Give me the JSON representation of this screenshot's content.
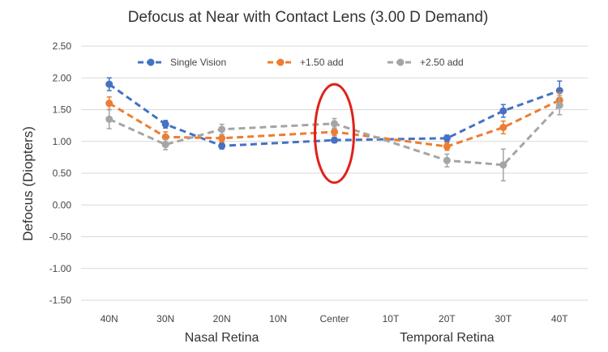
{
  "chart_data": {
    "type": "line",
    "title": "Defocus at Near with Contact Lens (3.00 D Demand)",
    "xlabel": "",
    "ylabel": "Defocus (Diopters)",
    "categories": [
      "40N",
      "30N",
      "20N",
      "10N",
      "Center",
      "10T",
      "20T",
      "30T",
      "40T"
    ],
    "x_group_labels": [
      "Nasal Retina",
      "Temporal Retina"
    ],
    "ylim": [
      -1.5,
      2.5
    ],
    "yticks": [
      -1.5,
      -1.0,
      -0.5,
      0.0,
      0.5,
      1.0,
      1.5,
      2.0,
      2.5
    ],
    "ytick_labels": [
      "-1.50",
      "-1.00",
      "-0.50",
      "0.00",
      "0.50",
      "1.00",
      "1.50",
      "2.00",
      "2.50"
    ],
    "grid": true,
    "legend_position": "top",
    "series": [
      {
        "name": "Single Vision",
        "color": "#4472C4",
        "values": [
          1.9,
          1.27,
          0.93,
          null,
          1.02,
          null,
          1.05,
          1.48,
          1.8
        ],
        "errors": [
          0.1,
          0.06,
          0.05,
          null,
          0.04,
          null,
          0.05,
          0.1,
          0.15
        ]
      },
      {
        "name": "+1.50 add",
        "color": "#ED7D31",
        "values": [
          1.6,
          1.07,
          1.05,
          null,
          1.15,
          null,
          0.92,
          1.22,
          1.65
        ],
        "errors": [
          0.1,
          0.08,
          0.06,
          null,
          0.06,
          null,
          0.06,
          0.1,
          0.12
        ]
      },
      {
        "name": "+2.50 add",
        "color": "#A5A5A5",
        "values": [
          1.35,
          0.95,
          1.19,
          null,
          1.28,
          null,
          0.7,
          0.63,
          1.57
        ],
        "errors": [
          0.15,
          0.08,
          0.08,
          null,
          0.08,
          null,
          0.1,
          0.25,
          0.15
        ]
      }
    ],
    "annotation": {
      "type": "ellipse",
      "category": "Center",
      "center_value": 1.05,
      "y_span": [
        0.35,
        1.9
      ],
      "color": "#E0211B"
    }
  }
}
